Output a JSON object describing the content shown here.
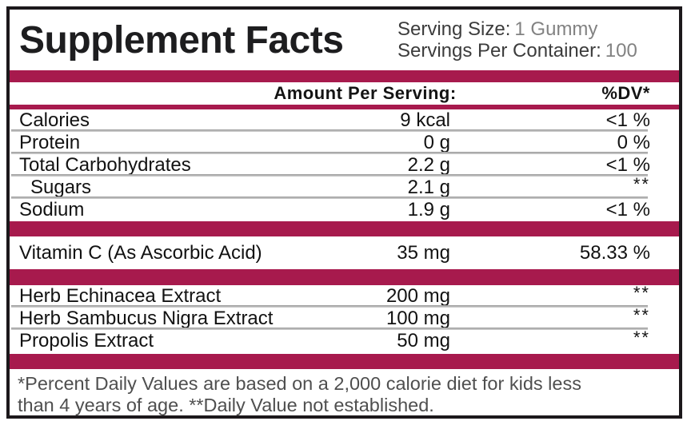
{
  "title": "Supplement Facts",
  "serving": {
    "size_label": "Serving Size:",
    "size_value": "1 Gummy",
    "container_label": "Servings Per Container:",
    "container_value": "100"
  },
  "header": {
    "amount_col": "Amount Per Serving:",
    "dv_col": "%DV*"
  },
  "rows_main": [
    {
      "name": "Calories",
      "amount": "9 kcal",
      "dv": "<1 %"
    },
    {
      "name": "Protein",
      "amount": "0 g",
      "dv": "0 %"
    },
    {
      "name": "Total Carbohydrates",
      "amount": "2.2 g",
      "dv": "<1 %"
    },
    {
      "name": "Sugars",
      "amount": "2.1 g",
      "dv": "**"
    },
    {
      "name": "Sodium",
      "amount": "1.9 g",
      "dv": "<1 %"
    }
  ],
  "rows_vitamin": [
    {
      "name": "Vitamin C (As Ascorbic Acid)",
      "amount": "35 mg",
      "dv": "58.33 %"
    }
  ],
  "rows_herbal": [
    {
      "name": "Herb Echinacea Extract",
      "amount": "200 mg",
      "dv": "**"
    },
    {
      "name": "Herb Sambucus Nigra Extract",
      "amount": "100 mg",
      "dv": "**"
    },
    {
      "name": "Propolis Extract",
      "amount": "50 mg",
      "dv": "**"
    }
  ],
  "footnote": {
    "line1": "*Percent Daily Values are based on a 2,000 calorie diet for kids less",
    "line2": "than 4 years of age. **Daily Value not established."
  },
  "colors": {
    "accent_bar": "#A71A4D",
    "border": "#1c181b",
    "separator": "#989898",
    "text_primary": "#121212",
    "footnote_gray": "#4f4f4f",
    "serving_value_gray": "#828282"
  }
}
